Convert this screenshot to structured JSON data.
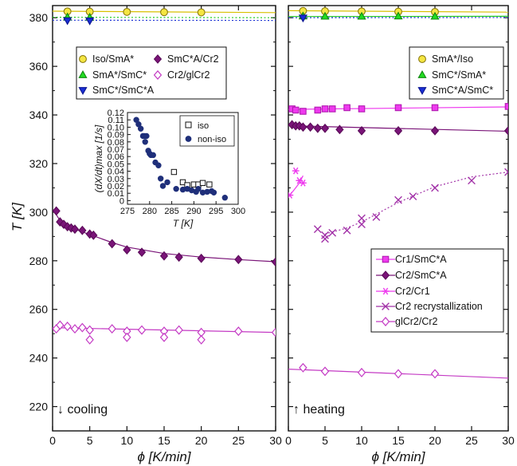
{
  "figure": {
    "ylabel": "T [K]",
    "ylim": [
      210,
      385
    ],
    "yticks": [
      220,
      240,
      260,
      280,
      300,
      320,
      340,
      360,
      380
    ],
    "xlabel": "ϕ [K/min]",
    "xlim": [
      0,
      30
    ],
    "xticks": [
      0,
      5,
      10,
      15,
      20,
      25,
      30
    ]
  },
  "styles": {
    "iso": {
      "shape": "circle",
      "fill": "#f5e642",
      "stroke": "#8a7a10",
      "line": "#d8c000"
    },
    "smc": {
      "shape": "triangle-up",
      "fill": "#22dd22",
      "stroke": "#118811",
      "line": "#22cc22"
    },
    "smca": {
      "shape": "triangle-down",
      "fill": "#1a2fd6",
      "stroke": "#0b1590",
      "line": "#1a2fd6"
    },
    "cr2": {
      "shape": "diamond",
      "fill": "#7a1478",
      "stroke": "#5a0b58",
      "line": "#7a1478"
    },
    "glcr2": {
      "shape": "diamond-open",
      "fill": "none",
      "stroke": "#c43ac4",
      "line": "#c43ac4"
    },
    "cr1": {
      "shape": "square",
      "fill": "#ee3aee",
      "stroke": "#b01ab0",
      "line": "#ee3aee"
    },
    "cr2cr1": {
      "shape": "asterisk",
      "fill": "none",
      "stroke": "#ee3aee",
      "line": "#ee3aee"
    },
    "recryst": {
      "shape": "cross",
      "fill": "none",
      "stroke": "#a232a8",
      "line": "#a232a8"
    }
  },
  "chart_data": [
    {
      "type": "scatter",
      "panel": "cooling",
      "annotation": "↓ cooling",
      "xlabel": "ϕ [K/min]",
      "ylabel": "T [K]",
      "xlim": [
        0,
        30
      ],
      "ylim": [
        210,
        385
      ],
      "legend_position": "top-left",
      "series": [
        {
          "name": "Iso/SmA*",
          "style": "iso",
          "x": [
            2,
            5,
            10,
            15,
            20
          ],
          "y": [
            382.6,
            382.5,
            382.4,
            382.3,
            382.2
          ],
          "fit": {
            "kind": "line",
            "x": [
              0,
              30
            ],
            "y": [
              382.7,
              382.1
            ]
          }
        },
        {
          "name": "SmA*/SmC*",
          "style": "smc",
          "x": [
            2,
            5
          ],
          "y": [
            380.2,
            380.1
          ],
          "fit": {
            "kind": "dotted",
            "x": [
              0,
              30
            ],
            "y": [
              380.2,
              380.0
            ]
          }
        },
        {
          "name": "SmC*/SmC*A",
          "style": "smca",
          "x": [
            2,
            5
          ],
          "y": [
            378.9,
            378.8
          ],
          "fit": {
            "kind": "dotted",
            "x": [
              0,
              30
            ],
            "y": [
              379.0,
              378.9
            ]
          }
        },
        {
          "name": "SmC*A/Cr2",
          "style": "cr2",
          "x": [
            0.5,
            1,
            1.5,
            2,
            2.5,
            3,
            4,
            5,
            5.5,
            8,
            10,
            12,
            15,
            17,
            20,
            25,
            30
          ],
          "y": [
            300.5,
            296,
            295,
            294,
            293.5,
            293,
            292.5,
            291,
            290.5,
            287,
            284.5,
            283.5,
            282,
            281.5,
            281,
            280.5,
            279.5
          ],
          "fit": {
            "kind": "line",
            "x": [
              0.5,
              1,
              2,
              3,
              5,
              8,
              10,
              15,
              20,
              25,
              30
            ],
            "y": [
              299,
              296.5,
              294.4,
              293,
              290.8,
              287.5,
              285.6,
              283,
              281.5,
              280.5,
              279.6
            ]
          }
        },
        {
          "name": "Cr2/glCr2",
          "style": "glcr2",
          "x": [
            0.5,
            1,
            2,
            3,
            4,
            5,
            5,
            8,
            10,
            10,
            12,
            15,
            15,
            17,
            20,
            20,
            25,
            30
          ],
          "y": [
            252,
            253.5,
            253,
            252,
            252.5,
            251.5,
            247.5,
            252,
            251,
            248.5,
            251.5,
            251,
            248.5,
            251.5,
            250.5,
            247.5,
            251,
            250.5
          ],
          "fit": {
            "kind": "line",
            "x": [
              0,
              30
            ],
            "y": [
              252.5,
              250.5
            ]
          }
        }
      ]
    },
    {
      "type": "scatter",
      "panel": "heating",
      "annotation": "↑ heating",
      "xlabel": "ϕ [K/min]",
      "ylabel": "",
      "xlim": [
        0,
        30
      ],
      "ylim": [
        210,
        385
      ],
      "legend_position": "top-right",
      "legend2_position": "bottom-right",
      "series": [
        {
          "name": "SmA*/Iso",
          "style": "iso",
          "x": [
            2,
            5,
            10,
            15,
            20
          ],
          "y": [
            382.8,
            382.7,
            382.6,
            382.5,
            382.4
          ],
          "fit": {
            "kind": "line",
            "x": [
              0,
              30
            ],
            "y": [
              382.9,
              382.3
            ]
          }
        },
        {
          "name": "SmC*/SmA*",
          "style": "smc",
          "x": [
            2,
            5,
            10,
            15,
            20
          ],
          "y": [
            380.6,
            380.5,
            380.5,
            380.6,
            380.5
          ],
          "fit": {
            "kind": "line",
            "x": [
              0,
              30
            ],
            "y": [
              380.5,
              380.6
            ]
          }
        },
        {
          "name": "SmC*A/SmC*",
          "style": "smca",
          "x": [
            2
          ],
          "y": [
            380.0
          ],
          "fit": {
            "kind": "dotted",
            "x": [
              0,
              30
            ],
            "y": [
              380.0,
              380.1
            ]
          }
        },
        {
          "name": "Cr1/SmC*A",
          "style": "cr1",
          "x": [
            0.5,
            1,
            2,
            4,
            5,
            6,
            8,
            10,
            15,
            20,
            30
          ],
          "y": [
            342.5,
            342,
            341.5,
            342,
            342.5,
            342.5,
            343,
            342.5,
            343,
            343,
            343.5
          ],
          "fit": {
            "kind": "line",
            "x": [
              0,
              30
            ],
            "y": [
              342.3,
              343.3
            ]
          }
        },
        {
          "name": "Cr2/SmC*A",
          "style": "cr2",
          "x": [
            0.5,
            1,
            1.5,
            2,
            3,
            4,
            5,
            7,
            10,
            15,
            20,
            30
          ],
          "y": [
            336,
            335.5,
            335.5,
            335,
            335,
            334.5,
            334.5,
            334,
            333.5,
            333.5,
            333.5,
            333.5
          ],
          "fit": {
            "kind": "line",
            "x": [
              0,
              30
            ],
            "y": [
              335.6,
              333.3
            ]
          }
        },
        {
          "name": "Cr2/Cr1",
          "style": "cr2cr1",
          "x": [
            0.2,
            1,
            1.5,
            2
          ],
          "y": [
            307,
            317,
            313,
            312
          ],
          "fit": {
            "kind": "line",
            "x": [
              0.2,
              1,
              1.5,
              2
            ],
            "y": [
              307,
              310,
              312,
              315
            ]
          }
        },
        {
          "name": "Cr2 recrystallization",
          "style": "recryst",
          "x": [
            4,
            5,
            5,
            6,
            8,
            10,
            10,
            12,
            15,
            17,
            20,
            25,
            30
          ],
          "y": [
            293,
            290.5,
            289,
            291.5,
            292.5,
            297.5,
            295,
            298,
            305,
            306.5,
            310,
            313,
            316.5
          ],
          "fit": {
            "kind": "dotted",
            "x": [
              5,
              8,
              10,
              15,
              20,
              25,
              30
            ],
            "y": [
              291,
              293.5,
              296,
              304,
              310.5,
              314.5,
              316.5
            ]
          }
        },
        {
          "name": "glCr2/Cr2",
          "style": "glcr2",
          "x": [
            2,
            5,
            10,
            15,
            20
          ],
          "y": [
            236,
            234.5,
            234,
            233.5,
            233.5
          ],
          "fit": {
            "kind": "line",
            "x": [
              0,
              30
            ],
            "y": [
              235.4,
              231.7
            ]
          }
        }
      ]
    },
    {
      "type": "scatter",
      "panel": "inset",
      "xlabel": "T [K]",
      "ylabel": "(dX/dt)max [1/s]",
      "xlim": [
        275,
        300
      ],
      "ylim": [
        -0.005,
        0.12
      ],
      "xticks": [
        275,
        280,
        285,
        290,
        295,
        300
      ],
      "yticks": [
        0,
        0.01,
        0.02,
        0.03,
        0.04,
        0.05,
        0.06,
        0.07,
        0.08,
        0.09,
        0.1,
        0.11,
        0.12
      ],
      "legend_position": "top-right",
      "series": [
        {
          "name": "iso",
          "marker": "open-square",
          "color": "#111111",
          "x": [
            285.5,
            287.5,
            288.5,
            290,
            291,
            292,
            293.5
          ],
          "y": [
            0.039,
            0.025,
            0.021,
            0.022,
            0.022,
            0.024,
            0.022
          ]
        },
        {
          "name": "non-iso",
          "marker": "filled-circle",
          "color": "#1f2f7a",
          "x": [
            277,
            277.5,
            278,
            278.5,
            278.8,
            279,
            279.3,
            279.7,
            280,
            280.3,
            280.8,
            281.3,
            282,
            282.5,
            283,
            284,
            286,
            287.5,
            288.5,
            289.5,
            290.5,
            291,
            292,
            293,
            294,
            294.5,
            297
          ],
          "y": [
            0.11,
            0.104,
            0.098,
            0.088,
            0.088,
            0.08,
            0.088,
            0.068,
            0.064,
            0.062,
            0.062,
            0.052,
            0.048,
            0.03,
            0.02,
            0.025,
            0.016,
            0.015,
            0.016,
            0.014,
            0.012,
            0.016,
            0.011,
            0.012,
            0.013,
            0.011,
            0.004
          ]
        }
      ]
    }
  ]
}
